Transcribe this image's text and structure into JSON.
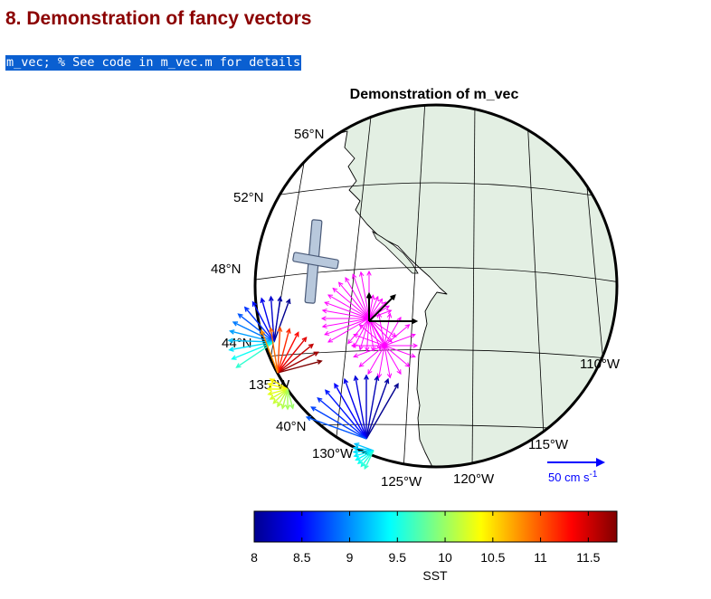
{
  "page": {
    "heading": "8. Demonstration of fancy vectors",
    "code": "m_vec; % See code in m_vec.m for details"
  },
  "figure": {
    "title": "Demonstration of m_vec",
    "lat_labels": [
      {
        "text": "56°N"
      },
      {
        "text": "52°N"
      },
      {
        "text": "48°N"
      },
      {
        "text": "44°N"
      },
      {
        "text": "40°N"
      }
    ],
    "lon_labels": [
      {
        "text": "135°W"
      },
      {
        "text": "130°W"
      },
      {
        "text": "125°W"
      },
      {
        "text": "120°W"
      },
      {
        "text": "115°W"
      },
      {
        "text": "110°W"
      }
    ],
    "scale_label": "50 cm s",
    "scale_exponent": "-1",
    "colors": {
      "land": "#e3efe3",
      "ocean": "#ffffff",
      "grid": "#000000",
      "vector_blue": "#0000ff",
      "vector_magenta": "#ff00ff",
      "ellipse_fill": "#b8c8dc",
      "ellipse_edge": "#4a5a78"
    },
    "colorbar": {
      "label": "SST",
      "min": 8,
      "max": 11.8,
      "colormap": "jet",
      "ticks": [
        "8",
        "8.5",
        "9",
        "9.5",
        "10",
        "10.5",
        "11",
        "11.5"
      ]
    }
  }
}
